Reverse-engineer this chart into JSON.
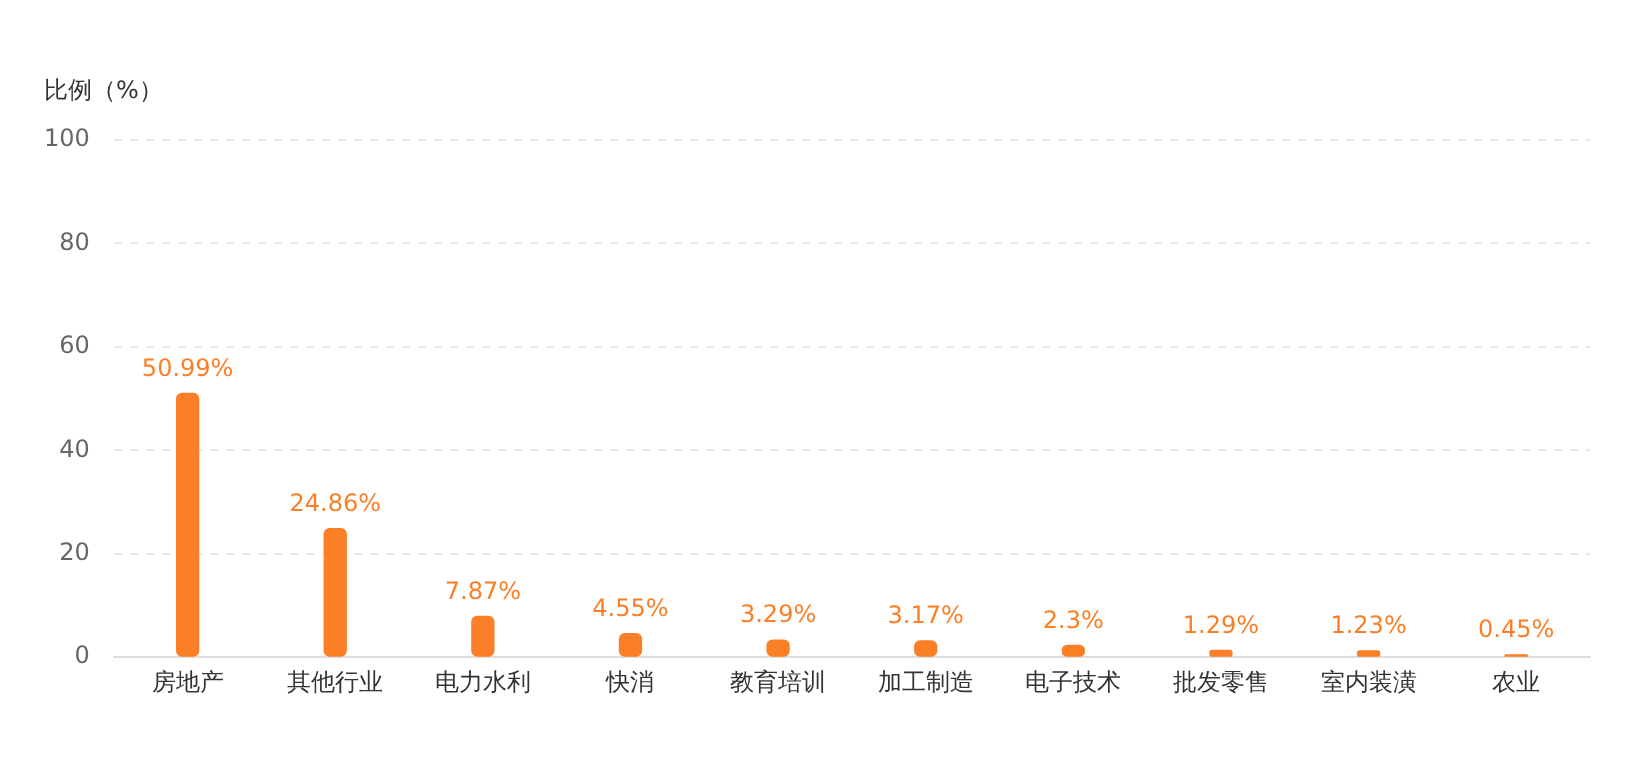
{
  "chart_data": {
    "type": "bar",
    "ylabel": "比例（%）",
    "categories": [
      "房地产",
      "其他行业",
      "电力水利",
      "快消",
      "教育培训",
      "加工制造",
      "电子技术",
      "批发零售",
      "室内装潢",
      "农业"
    ],
    "values": [
      50.99,
      24.86,
      7.87,
      4.55,
      3.29,
      3.17,
      2.3,
      1.29,
      1.23,
      0.45
    ],
    "value_labels": [
      "50.99%",
      "24.86%",
      "7.87%",
      "4.55%",
      "3.29%",
      "3.17%",
      "2.3%",
      "1.29%",
      "1.23%",
      "0.45%"
    ],
    "color": "#fb7f26",
    "ylim": [
      0,
      100
    ],
    "yticks": [
      0,
      20,
      40,
      60,
      80,
      100
    ],
    "grid": "y"
  }
}
